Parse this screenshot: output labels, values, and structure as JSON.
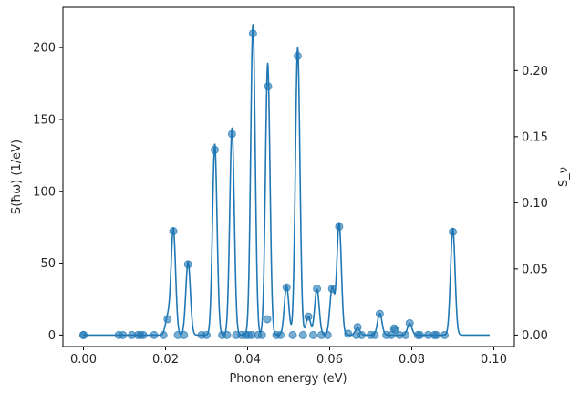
{
  "chart_data": {
    "type": "line",
    "title": "",
    "xlabel": "Phonon energy (eV)",
    "ylabel": "S(ħω)  (1/eV)",
    "y2label": "S_ν",
    "xlim": [
      -0.005,
      0.105
    ],
    "ylim": [
      -8,
      228
    ],
    "y2lim": [
      -0.0087,
      0.2478
    ],
    "xticks": [
      0.0,
      0.02,
      0.04,
      0.06,
      0.08,
      0.1
    ],
    "xtick_labels": [
      "0.00",
      "0.02",
      "0.04",
      "0.06",
      "0.08",
      "0.10"
    ],
    "yticks": [
      0,
      50,
      100,
      150,
      200
    ],
    "ytick_labels": [
      "0",
      "50",
      "100",
      "150",
      "200"
    ],
    "y2ticks": [
      0.0,
      0.05,
      0.1,
      0.15,
      0.2
    ],
    "y2tick_labels": [
      "0.00",
      "0.05",
      "0.10",
      "0.15",
      "0.20"
    ],
    "grid": false,
    "line_color": "#1f77b4",
    "marker_color": "#1f77b4",
    "peak_width": 0.00055,
    "x_max": 0.099,
    "series": [
      {
        "kind": "line",
        "axis": "left",
        "peaks": [
          {
            "x": 0.0205,
            "y": 12
          },
          {
            "x": 0.0219,
            "y": 74
          },
          {
            "x": 0.0255,
            "y": 51
          },
          {
            "x": 0.032,
            "y": 133
          },
          {
            "x": 0.0362,
            "y": 144
          },
          {
            "x": 0.0413,
            "y": 216
          },
          {
            "x": 0.0449,
            "y": 189
          },
          {
            "x": 0.0495,
            "y": 34
          },
          {
            "x": 0.0522,
            "y": 200
          },
          {
            "x": 0.0548,
            "y": 13
          },
          {
            "x": 0.0569,
            "y": 32
          },
          {
            "x": 0.0606,
            "y": 33
          },
          {
            "x": 0.0623,
            "y": 78
          },
          {
            "x": 0.0668,
            "y": 5
          },
          {
            "x": 0.0722,
            "y": 15
          },
          {
            "x": 0.0795,
            "y": 8
          },
          {
            "x": 0.09,
            "y": 74
          }
        ]
      },
      {
        "kind": "scatter",
        "axis": "right",
        "x": [
          0.0,
          0.0,
          0.0086,
          0.0096,
          0.0118,
          0.0133,
          0.0139,
          0.0146,
          0.0172,
          0.0195,
          0.0205,
          0.0219,
          0.023,
          0.0245,
          0.0255,
          0.0288,
          0.03,
          0.032,
          0.0338,
          0.035,
          0.0362,
          0.0372,
          0.0385,
          0.0395,
          0.0402,
          0.041,
          0.0413,
          0.0425,
          0.0435,
          0.0448,
          0.045,
          0.047,
          0.048,
          0.0495,
          0.051,
          0.0522,
          0.0535,
          0.0548,
          0.056,
          0.0569,
          0.058,
          0.0595,
          0.0606,
          0.0623,
          0.0645,
          0.0665,
          0.0668,
          0.0678,
          0.07,
          0.071,
          0.0722,
          0.0738,
          0.075,
          0.0757,
          0.076,
          0.077,
          0.0785,
          0.0795,
          0.0815,
          0.082,
          0.084,
          0.0855,
          0.086,
          0.088,
          0.09
        ],
        "y": [
          0.0,
          0.0,
          0.0,
          0.0,
          0.0,
          0.0,
          0.0,
          0.0,
          0.0,
          0.0,
          0.012,
          0.0785,
          0.0,
          0.0,
          0.0535,
          0.0,
          0.0,
          0.14,
          0.0,
          0.0,
          0.152,
          0.0,
          0.0,
          0.0,
          0.0,
          0.0,
          0.228,
          0.0,
          0.0,
          0.012,
          0.188,
          0.0,
          0.0,
          0.036,
          0.0,
          0.211,
          0.0,
          0.014,
          0.0,
          0.035,
          0.0,
          0.0,
          0.035,
          0.082,
          0.001,
          0.0,
          0.006,
          0.0,
          0.0,
          0.0,
          0.016,
          0.0,
          0.0,
          0.005,
          0.004,
          0.0,
          0.0,
          0.009,
          0.0,
          0.0,
          0.0,
          0.0,
          0.0,
          0.0,
          0.078
        ]
      }
    ]
  }
}
